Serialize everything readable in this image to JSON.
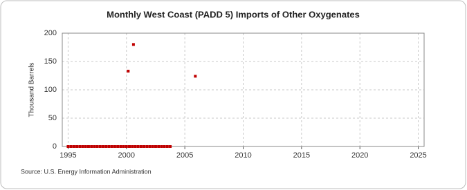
{
  "chart_data": {
    "type": "scatter",
    "title": "Monthly West Coast (PADD 5) Imports of Other Oxygenates",
    "y_label": "Thousand Barrels",
    "source": "Source: U.S. Energy Information Administration",
    "color": "#c00000",
    "grid": true,
    "x": [
      1995,
      1995.25,
      1995.5,
      1995.75,
      1996,
      1996.25,
      1996.5,
      1996.75,
      1997,
      1997.25,
      1997.5,
      1997.75,
      1998,
      1998.25,
      1998.5,
      1998.75,
      1999,
      1999.25,
      1999.5,
      1999.75,
      2000,
      2000.15,
      2000.25,
      2000.5,
      2000.6,
      2000.75,
      2001,
      2001.25,
      2001.5,
      2001.75,
      2002,
      2002.25,
      2002.5,
      2002.75,
      2003,
      2003.25,
      2003.5,
      2003.75,
      2005.9
    ],
    "values": [
      0,
      0,
      0,
      0,
      0,
      0,
      0,
      0,
      0,
      0,
      0,
      0,
      0,
      0,
      0,
      0,
      0,
      0,
      0,
      0,
      0,
      133,
      0,
      0,
      180,
      0,
      0,
      0,
      0,
      0,
      0,
      0,
      0,
      0,
      0,
      0,
      0,
      0,
      124
    ],
    "xlim": [
      1994.5,
      2025.5
    ],
    "ylim": [
      0,
      200
    ],
    "xticks": [
      1995,
      2000,
      2005,
      2010,
      2015,
      2020,
      2025
    ],
    "yticks": [
      0,
      50,
      100,
      150,
      200
    ]
  }
}
